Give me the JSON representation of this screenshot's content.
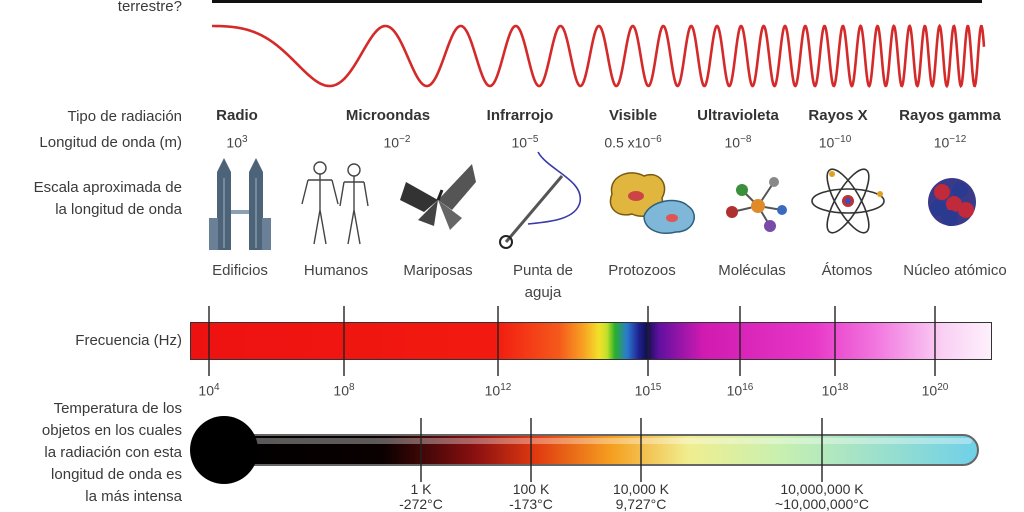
{
  "header_label_partial": "terrestre?",
  "row_labels": {
    "type": "Tipo de radiación",
    "wavelength": "Longitud de onda (m)",
    "scale_line1": "Escala aproximada de",
    "scale_line2": "la longitud de onda",
    "frequency": "Frecuencia (Hz)",
    "temp_line1": "Temperatura de los",
    "temp_line2": "objetos en los cuales",
    "temp_line3": "la radiación con esta",
    "temp_line4": "longitud de onda es",
    "temp_line5": "la más intensa"
  },
  "radiation_types": [
    {
      "name": "Radio",
      "wl_base": "10",
      "wl_exp": "3",
      "object": "Edificios",
      "object2": "",
      "icon": "building-icon"
    },
    {
      "name": "Microondas",
      "wl_base": "10",
      "wl_exp": "−2",
      "object": "Humanos",
      "object2": "",
      "icon": "humans-icon"
    },
    {
      "name": "Infrarrojo",
      "wl_base": "10",
      "wl_exp": "−5",
      "object": "Mariposas",
      "object2": "",
      "icon": "butterfly-icon"
    },
    {
      "name": "Visible",
      "wl_base": "0.5 x10",
      "wl_exp": "−6",
      "object": "Punta de",
      "object2": "aguja",
      "icon": "needle-icon"
    },
    {
      "name": "Ultravioleta",
      "wl_base": "10",
      "wl_exp": "−8",
      "object": "Protozoos",
      "object2": "",
      "icon": "protozoa-icon"
    },
    {
      "name": "Rayos X",
      "wl_base": "10",
      "wl_exp": "−10",
      "object": "Moléculas",
      "object2": "",
      "icon": "molecule-icon"
    },
    {
      "name": "Rayos gamma",
      "wl_base": "10",
      "wl_exp": "−12",
      "object": "Átomos",
      "object2": "",
      "icon": "atom-icon"
    },
    {
      "name": "",
      "wl_base": "",
      "wl_exp": "",
      "object": "Núcleo atómico",
      "object2": "",
      "icon": "nucleus-icon"
    }
  ],
  "frequency_ticks": [
    {
      "base": "10",
      "exp": "4"
    },
    {
      "base": "10",
      "exp": "8"
    },
    {
      "base": "10",
      "exp": "12"
    },
    {
      "base": "10",
      "exp": "15"
    },
    {
      "base": "10",
      "exp": "16"
    },
    {
      "base": "10",
      "exp": "18"
    },
    {
      "base": "10",
      "exp": "20"
    }
  ],
  "temperature_ticks": [
    {
      "k": "1 K",
      "c": "-272°C"
    },
    {
      "k": "100 K",
      "c": "-173°C"
    },
    {
      "k": "10,000 K",
      "c": "9,727°C"
    },
    {
      "k": "10,000,000 K",
      "c": "~10,000,000°C"
    }
  ],
  "colors": {
    "wave": "#d42a2a",
    "thermo_end": "#6fd0e8"
  }
}
